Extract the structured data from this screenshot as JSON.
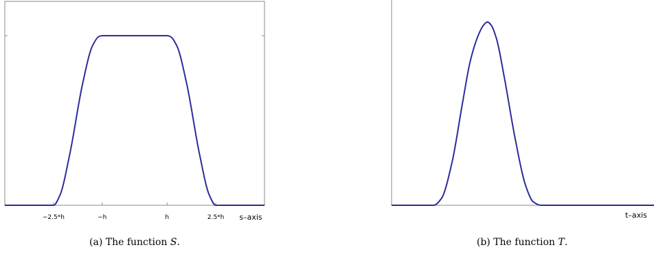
{
  "chart_data": [
    {
      "type": "line",
      "caption": {
        "prefix": "(a)  The function ",
        "var": "S",
        "suffix": "."
      },
      "xlabel": "s–axis",
      "ylabel": "",
      "xticks": [
        "−2.5*h",
        "−h",
        "h",
        "2.5*h"
      ],
      "xlim": [
        -4,
        4
      ],
      "ylim": [
        0,
        1
      ],
      "series": [
        {
          "color": "#2b2b9a",
          "x": [
            -4,
            -2.5,
            -2.3,
            -2.0,
            -1.6,
            -1.3,
            -1.1,
            -1.0,
            1.0,
            1.1,
            1.3,
            1.6,
            2.0,
            2.3,
            2.5,
            4
          ],
          "y": [
            0,
            0,
            0.06,
            0.3,
            0.72,
            0.94,
            0.995,
            1.0,
            1.0,
            0.995,
            0.94,
            0.72,
            0.3,
            0.06,
            0,
            0
          ]
        }
      ]
    },
    {
      "type": "line",
      "caption": {
        "prefix": "(b)  The function ",
        "var": "T",
        "suffix": "."
      },
      "xlabel": "t–axis",
      "ylabel": "",
      "xticks": [],
      "xlim": [
        0,
        10
      ],
      "ylim": [
        0,
        1.1
      ],
      "series": [
        {
          "color": "#2b2b9a",
          "x": [
            0,
            1.6,
            1.9,
            2.3,
            2.7,
            3.0,
            3.3,
            3.5,
            3.65,
            3.8,
            4.0,
            4.3,
            4.7,
            5.1,
            5.4,
            5.7,
            6.2,
            10
          ],
          "y": [
            0,
            0,
            0.04,
            0.25,
            0.6,
            0.85,
            1.0,
            1.06,
            1.08,
            1.06,
            0.98,
            0.75,
            0.4,
            0.12,
            0.02,
            0,
            0,
            0
          ]
        }
      ]
    }
  ]
}
